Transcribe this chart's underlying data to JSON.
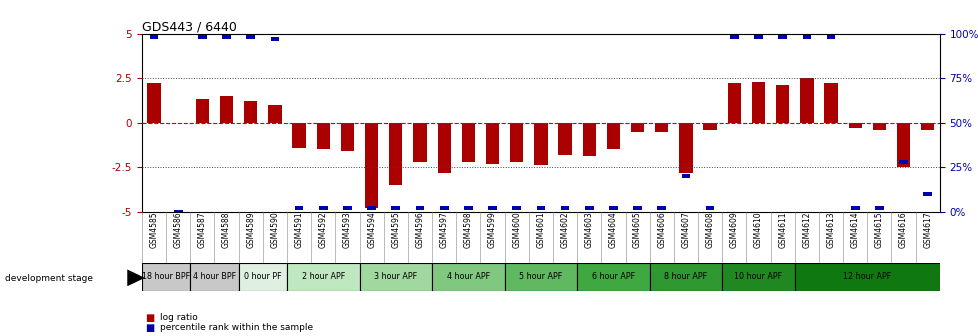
{
  "title": "GDS443 / 6440",
  "samples": [
    "GSM4585",
    "GSM4586",
    "GSM4587",
    "GSM4588",
    "GSM4589",
    "GSM4590",
    "GSM4591",
    "GSM4592",
    "GSM4593",
    "GSM4594",
    "GSM4595",
    "GSM4596",
    "GSM4597",
    "GSM4598",
    "GSM4599",
    "GSM4600",
    "GSM4601",
    "GSM4602",
    "GSM4603",
    "GSM4604",
    "GSM4605",
    "GSM4606",
    "GSM4607",
    "GSM4608",
    "GSM4609",
    "GSM4610",
    "GSM4611",
    "GSM4612",
    "GSM4613",
    "GSM4614",
    "GSM4615",
    "GSM4616",
    "GSM4617"
  ],
  "log_ratio": [
    2.2,
    0.0,
    1.3,
    1.5,
    1.2,
    1.0,
    -1.4,
    -1.5,
    -1.6,
    -4.8,
    -3.5,
    -2.2,
    -2.8,
    -2.2,
    -2.3,
    -2.2,
    -2.4,
    -1.8,
    -1.9,
    -1.5,
    -0.5,
    -0.5,
    -2.8,
    -0.4,
    2.2,
    2.3,
    2.1,
    2.5,
    2.2,
    -0.3,
    -0.4,
    -2.5,
    -0.4
  ],
  "percentile": [
    98,
    0,
    98,
    98,
    98,
    97,
    2,
    2,
    2,
    2,
    2,
    2,
    2,
    2,
    2,
    2,
    2,
    2,
    2,
    2,
    2,
    2,
    20,
    2,
    98,
    98,
    98,
    98,
    98,
    2,
    2,
    28,
    10
  ],
  "stages": [
    {
      "label": "18 hour BPF",
      "start": 0,
      "end": 2,
      "color": "#c8c8c8"
    },
    {
      "label": "4 hour BPF",
      "start": 2,
      "end": 4,
      "color": "#c8c8c8"
    },
    {
      "label": "0 hour PF",
      "start": 4,
      "end": 6,
      "color": "#e0f0e0"
    },
    {
      "label": "2 hour APF",
      "start": 6,
      "end": 9,
      "color": "#c0e8c0"
    },
    {
      "label": "3 hour APF",
      "start": 9,
      "end": 12,
      "color": "#a0d8a0"
    },
    {
      "label": "4 hour APF",
      "start": 12,
      "end": 15,
      "color": "#80c880"
    },
    {
      "label": "5 hour APF",
      "start": 15,
      "end": 18,
      "color": "#60b860"
    },
    {
      "label": "6 hour APF",
      "start": 18,
      "end": 21,
      "color": "#40a840"
    },
    {
      "label": "8 hour APF",
      "start": 21,
      "end": 24,
      "color": "#309830"
    },
    {
      "label": "10 hour APF",
      "start": 24,
      "end": 27,
      "color": "#208820"
    },
    {
      "label": "12 hour APF",
      "start": 27,
      "end": 33,
      "color": "#107810"
    }
  ],
  "bar_color": "#aa0000",
  "percentile_color": "#0000aa",
  "zero_line_color": "#cc0000",
  "dotted_line_color": "#444444",
  "ylim": [
    -5,
    5
  ],
  "yticks": [
    -5,
    -2.5,
    0,
    2.5,
    5
  ],
  "ytick_labels": [
    "-5",
    "-2.5",
    "0",
    "2.5",
    "5"
  ],
  "y2ticks_pct": [
    0,
    25,
    50,
    75,
    100
  ],
  "y2tick_labels": [
    "0%",
    "25%",
    "50%",
    "75%",
    "100%"
  ],
  "bg_color": "#ffffff"
}
